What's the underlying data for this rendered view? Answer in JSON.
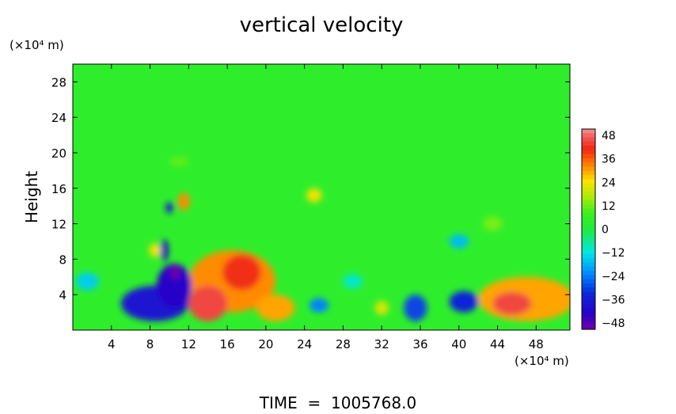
{
  "chart_data": {
    "type": "heatmap",
    "title": "vertical velocity",
    "ylabel": "Height",
    "y_unit_label": "(×10⁴ m)",
    "x_unit_label": "(×10⁴ m)",
    "footer": "TIME  =  1005768.0",
    "xlim": [
      0,
      51.5
    ],
    "ylim": [
      0,
      30
    ],
    "x_ticks": [
      "4",
      "8",
      "12",
      "16",
      "20",
      "24",
      "28",
      "32",
      "36",
      "40",
      "44",
      "48"
    ],
    "y_ticks": [
      "4",
      "8",
      "12",
      "16",
      "20",
      "24",
      "28"
    ],
    "colorbar_ticks": [
      "48",
      "36",
      "24",
      "12",
      "0",
      "−12",
      "−24",
      "−36",
      "−48"
    ],
    "colorbar_range": [
      -48,
      48
    ],
    "background_value": 4,
    "features": [
      {
        "x": 16.5,
        "y": 5.5,
        "rx": 4.5,
        "ry": 3.5,
        "value": 30
      },
      {
        "x": 17.5,
        "y": 6.5,
        "rx": 2.0,
        "ry": 2.0,
        "value": 38
      },
      {
        "x": 14.0,
        "y": 3.0,
        "rx": 2.0,
        "ry": 2.0,
        "value": 42
      },
      {
        "x": 21.0,
        "y": 2.5,
        "rx": 2.0,
        "ry": 1.5,
        "value": 28
      },
      {
        "x": 47.0,
        "y": 3.5,
        "rx": 5.0,
        "ry": 2.5,
        "value": 28
      },
      {
        "x": 45.5,
        "y": 3.0,
        "rx": 2.0,
        "ry": 1.3,
        "value": 42
      },
      {
        "x": 8.5,
        "y": 3.0,
        "rx": 3.5,
        "ry": 2.0,
        "value": -36
      },
      {
        "x": 10.5,
        "y": 5.0,
        "rx": 1.8,
        "ry": 2.5,
        "value": -40
      },
      {
        "x": 10.6,
        "y": 6.5,
        "rx": 0.5,
        "ry": 0.8,
        "value": -48
      },
      {
        "x": 40.5,
        "y": 3.2,
        "rx": 1.5,
        "ry": 1.2,
        "value": -32
      },
      {
        "x": 35.5,
        "y": 2.5,
        "rx": 1.2,
        "ry": 1.5,
        "value": -28
      },
      {
        "x": 25.5,
        "y": 2.8,
        "rx": 1.0,
        "ry": 0.8,
        "value": -22
      },
      {
        "x": 1.5,
        "y": 5.5,
        "rx": 1.2,
        "ry": 1.0,
        "value": -14
      },
      {
        "x": 11.5,
        "y": 14.5,
        "rx": 0.6,
        "ry": 1.0,
        "value": 30
      },
      {
        "x": 10.0,
        "y": 13.8,
        "rx": 0.4,
        "ry": 0.6,
        "value": -36
      },
      {
        "x": 25.0,
        "y": 15.2,
        "rx": 0.8,
        "ry": 0.8,
        "value": 22
      },
      {
        "x": 8.5,
        "y": 9.0,
        "rx": 0.6,
        "ry": 0.8,
        "value": 22
      },
      {
        "x": 9.5,
        "y": 9.0,
        "rx": 0.4,
        "ry": 1.2,
        "value": -40
      },
      {
        "x": 40.0,
        "y": 10.0,
        "rx": 1.0,
        "ry": 0.8,
        "value": -16
      },
      {
        "x": 32.0,
        "y": 2.5,
        "rx": 0.7,
        "ry": 0.8,
        "value": 20
      },
      {
        "x": 29.0,
        "y": 5.5,
        "rx": 1.0,
        "ry": 0.8,
        "value": -10
      },
      {
        "x": 11.0,
        "y": 19.0,
        "rx": 1.0,
        "ry": 0.6,
        "value": 10
      },
      {
        "x": 43.5,
        "y": 12.0,
        "rx": 1.0,
        "ry": 0.8,
        "value": 12
      }
    ]
  }
}
